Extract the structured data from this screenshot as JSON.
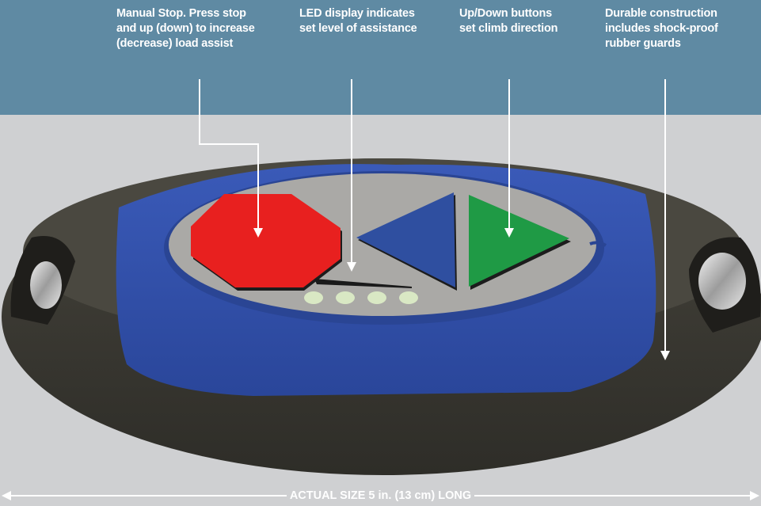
{
  "callouts": {
    "manual_stop": "Manual Stop. Press stop\nand up (down) to increase\n(decrease) load assist",
    "led_display": "LED display indicates\nset level of assistance",
    "up_down": "Up/Down buttons\nset climb direction",
    "construction": "Durable construction\nincludes shock-proof\nrubber guards"
  },
  "caption": "ACTUAL SIZE 5 in. (13 cm) LONG",
  "colors": {
    "header_band": "#5f8aa3",
    "stop_button": "#e8201f",
    "down_button": "#2f4fa0",
    "up_button": "#1f9a45",
    "blue_bezel": "#2f4fa8",
    "rubber_guard": "#3a3932",
    "faceplate": "#aaa9a6",
    "led_off": "#d9e8c4"
  }
}
